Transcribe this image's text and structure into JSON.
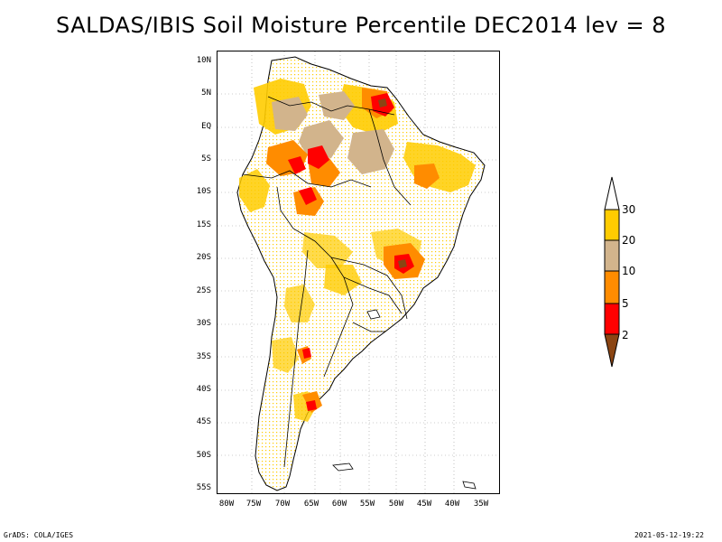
{
  "title": "SALDAS/IBIS Soil Moisture Percentile DEC2014 lev = 8",
  "latitude_labels": [
    "10N",
    "5N",
    "EQ",
    "5S",
    "10S",
    "15S",
    "20S",
    "25S",
    "30S",
    "35S",
    "40S",
    "45S",
    "50S",
    "55S"
  ],
  "longitude_labels": [
    "80W",
    "75W",
    "70W",
    "65W",
    "60W",
    "55W",
    "50W",
    "45W",
    "40W",
    "35W"
  ],
  "legend": {
    "labels": [
      "30",
      "20",
      "10",
      "5",
      "2"
    ],
    "colors": {
      "above_30": "#ffffff",
      "20_30": "#ffcc00",
      "10_20": "#d2b48c",
      "5_10": "#ff8c00",
      "2_5": "#ff0000",
      "below_2": "#8b4513"
    }
  },
  "footer": {
    "left": "GrADS: COLA/IGES",
    "right": "2021-05-12-19:22"
  }
}
